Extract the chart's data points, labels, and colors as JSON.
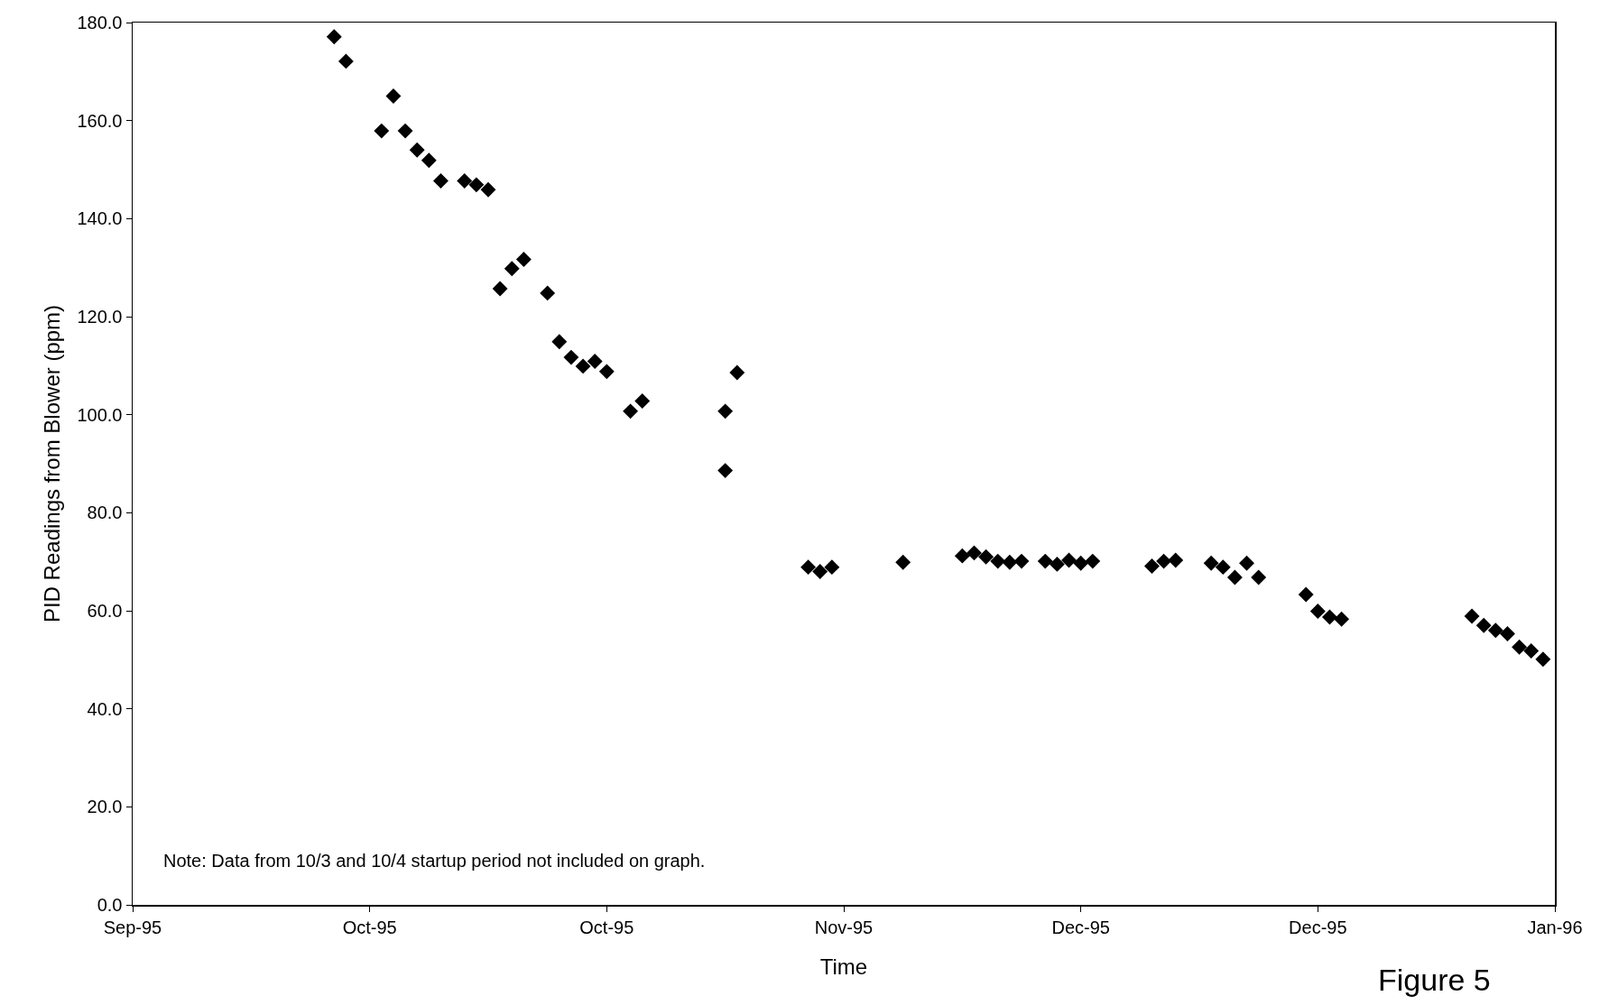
{
  "chart_data": {
    "type": "scatter",
    "xlabel": "Time",
    "ylabel": "PID Readings from Blower (ppm)",
    "marker": "diamond",
    "grid": false,
    "annotations": [
      "Note: Data from 10/3 and 10/4 startup period not included on graph.",
      "Figure 5"
    ],
    "x": [
      "1995-10-05",
      "1995-10-06",
      "1995-10-09",
      "1995-10-10",
      "1995-10-11",
      "1995-10-12",
      "1995-10-13",
      "1995-10-14",
      "1995-10-16",
      "1995-10-17",
      "1995-10-18",
      "1995-10-19",
      "1995-10-20",
      "1995-10-21",
      "1995-10-23",
      "1995-10-24",
      "1995-10-25",
      "1995-10-26",
      "1995-10-27",
      "1995-10-28",
      "1995-10-30",
      "1995-10-31",
      "1995-11-07",
      "1995-11-07",
      "1995-11-08",
      "1995-11-14",
      "1995-11-15",
      "1995-11-16",
      "1995-11-22",
      "1995-11-27",
      "1995-11-28",
      "1995-11-29",
      "1995-11-30",
      "1995-12-01",
      "1995-12-02",
      "1995-12-04",
      "1995-12-05",
      "1995-12-06",
      "1995-12-07",
      "1995-12-08",
      "1995-12-13",
      "1995-12-14",
      "1995-12-15",
      "1995-12-18",
      "1995-12-19",
      "1995-12-20",
      "1995-12-21",
      "1995-12-22",
      "1995-12-26",
      "1995-12-27",
      "1995-12-28",
      "1995-12-29",
      "1996-01-09",
      "1996-01-10",
      "1996-01-11",
      "1996-01-12",
      "1996-01-13",
      "1996-01-14",
      "1996-01-15"
    ],
    "series": [
      {
        "color": "#000000",
        "values": [
          177.1,
          172.1,
          157.9,
          165.0,
          157.9,
          154.0,
          151.9,
          147.7,
          147.7,
          146.9,
          145.9,
          125.7,
          129.8,
          131.7,
          124.8,
          114.9,
          111.7,
          109.9,
          110.9,
          108.8,
          100.7,
          102.8,
          100.7,
          88.6,
          108.6,
          68.9,
          68.0,
          68.9,
          69.9,
          71.2,
          71.8,
          71.0,
          70.1,
          69.9,
          70.1,
          70.1,
          69.5,
          70.3,
          69.7,
          70.1,
          69.1,
          70.1,
          70.3,
          69.7,
          68.9,
          66.8,
          69.7,
          66.8,
          63.3,
          59.9,
          58.7,
          58.3,
          58.9,
          57.0,
          56.0,
          55.3,
          52.6,
          51.8,
          50.1
        ]
      }
    ],
    "xlim": [
      "1995-09-18",
      "1996-01-16"
    ],
    "xticks": [
      {
        "value": "1995-09-18",
        "label": "Sep-95"
      },
      {
        "value": "1995-10-08",
        "label": "Oct-95"
      },
      {
        "value": "1995-10-28",
        "label": "Oct-95"
      },
      {
        "value": "1995-11-17",
        "label": "Nov-95"
      },
      {
        "value": "1995-12-07",
        "label": "Dec-95"
      },
      {
        "value": "1995-12-27",
        "label": "Dec-95"
      },
      {
        "value": "1996-01-16",
        "label": "Jan-96"
      }
    ],
    "ylim": [
      0,
      180
    ],
    "yticks": [
      {
        "value": 0,
        "label": "0.0"
      },
      {
        "value": 20,
        "label": "20.0"
      },
      {
        "value": 40,
        "label": "40.0"
      },
      {
        "value": 60,
        "label": "60.0"
      },
      {
        "value": 80,
        "label": "80.0"
      },
      {
        "value": 100,
        "label": "100.0"
      },
      {
        "value": 120,
        "label": "120.0"
      },
      {
        "value": 140,
        "label": "140.0"
      },
      {
        "value": 160,
        "label": "160.0"
      },
      {
        "value": 180,
        "label": "180.0"
      }
    ]
  }
}
